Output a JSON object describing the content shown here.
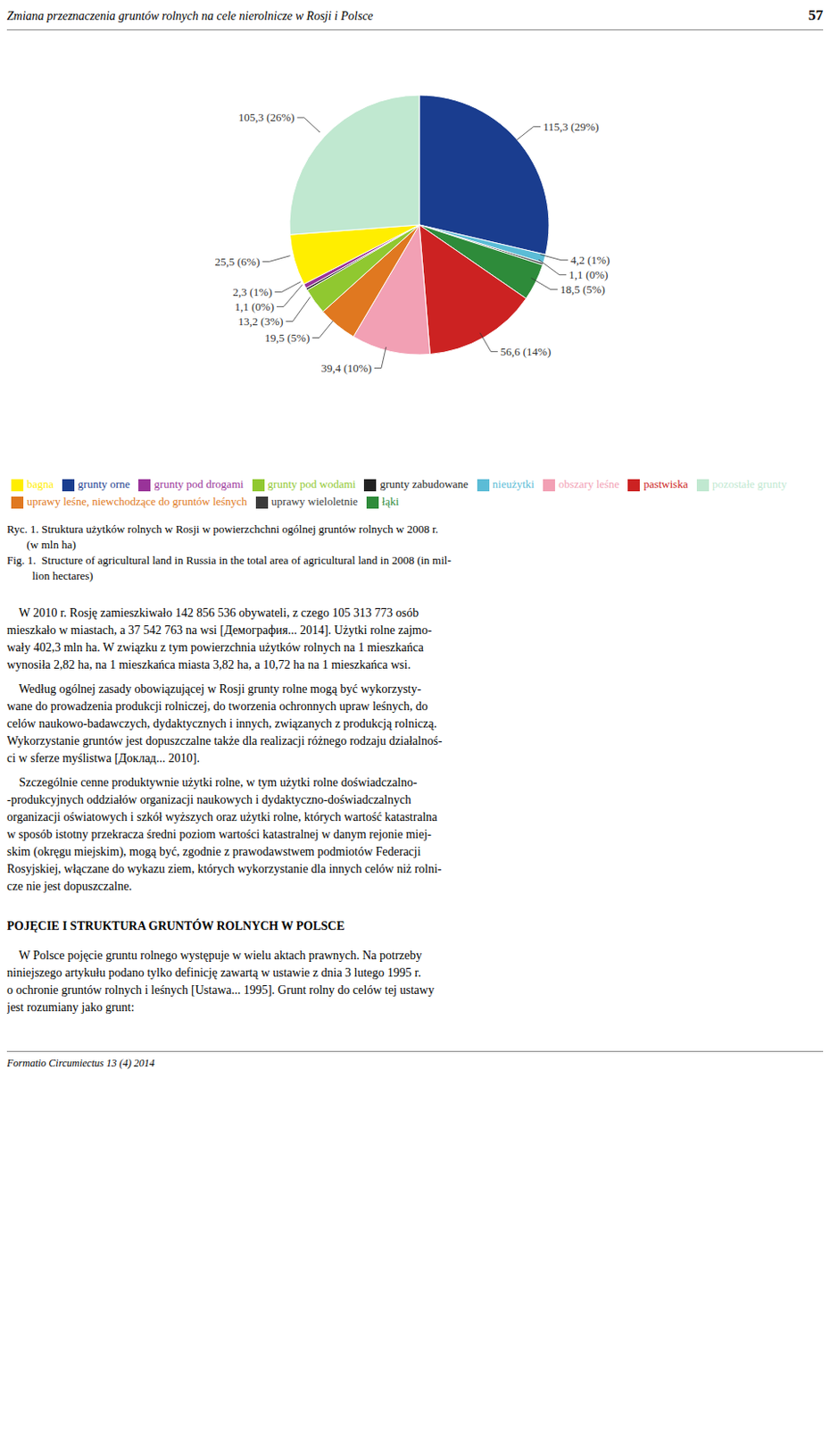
{
  "chart_data": {
    "type": "pie",
    "categories": [
      "grunty orne",
      "nieużytki",
      "uprawy wieloletnie",
      "łąki",
      "pastwiska",
      "obszary leśne",
      "uprawy leśne, niewchodzące do gruntów leśnych",
      "grunty pod wodami",
      "grunty zabudowane",
      "grunty pod drogami",
      "bagna",
      "pozostałe grunty"
    ],
    "values": [
      115.3,
      4.2,
      1.1,
      18.5,
      56.6,
      39.4,
      19.5,
      13.2,
      1.1,
      2.3,
      25.5,
      105.3
    ],
    "value_labels": [
      "115,3 (29%)",
      "4,2 (1%)",
      "1,1 (0%)",
      "18,5 (5%)",
      "56,6 (14%)",
      "39,4 (10%)",
      "19,5 (5%)",
      "13,2 (3%)",
      "1,1 (0%)",
      "2,3 (1%)",
      "25,5 (6%)",
      "105,3 (26%)"
    ],
    "colors": [
      "#1a3d8f",
      "#5bbcd6",
      "#3a3a3a",
      "#2e8b3a",
      "#cc2222",
      "#f2a0b4",
      "#e07820",
      "#90c830",
      "#222222",
      "#993399",
      "#ffee00",
      "#c0e8d0"
    ],
    "data_labels": true,
    "legend": "bottom",
    "annotations": {
      "header": "Zmiana przeznaczenia gruntów rolnych na cele nierolnicze w Rosji i Polsce",
      "page_number": "57",
      "caption": [
        "Ryc. 1. Struktura użytków rolnych w Rosji w powierzchchni ogólnej gruntów rolnych w 2008 r.",
        "       (w mln ha)",
        "Fig. 1.  Structure of agricultural land in Russia in the total area of agricultural land in 2008 (in mil-",
        "         lion hectares)"
      ],
      "body": [
        [
          "    W 2010 r. Rosję zamieszkiwało 142 856 536 obywateli, z czego 105 313 773 osób",
          "mieszkało w miastach, a 37 542 763 na wsi [Демография... 2014]. Użytki rolne zajmo-",
          "wały 402,3 mln ha. W związku z tym powierzchnia użytków rolnych na 1 mieszkańca",
          "wynosiła 2,82 ha, na 1 mieszkańca miasta 3,82 ha, a 10,72 ha na 1 mieszkańca wsi."
        ],
        [
          "    Według ogólnej zasady obowiązującej w Rosji grunty rolne mogą być wykorzysty-",
          "wane do prowadzenia produkcji rolniczej, do tworzenia ochronnych upraw leśnych, do",
          "celów naukowo-badawczych, dydaktycznych i innych, związanych z produkcją rolniczą.",
          "Wykorzystanie gruntów jest dopuszczalne także dla realizacji różnego rodzaju działalnoś-",
          "ci w sferze myślistwa [Доклад... 2010]."
        ],
        [
          "    Szczególnie cenne produktywnie użytki rolne, w tym użytki rolne doświadczalno-",
          "-produkcyjnych oddziałów organizacji naukowych i dydaktyczno-doświadczalnych",
          "organizacji oświatowych i szkół wyższych oraz użytki rolne, których wartość katastralna",
          "w sposób istotny przekracza średni poziom wartości katastralnej w danym rejonie miej-",
          "skim (okręgu miejskim), mogą być, zgodnie z prawodawstwem podmiotów Federacji",
          "Rosyjskiej, włączane do wykazu ziem, których wykorzystanie dla innych celów niż rolni-",
          "cze nie jest dopuszczalne."
        ]
      ],
      "section_title": "POJĘCIE I STRUKTURA GRUNTÓW ROLNYCH W POLSCE",
      "body_after_section": [
        "    W Polsce pojęcie gruntu rolnego występuje w wielu aktach prawnych. Na potrzeby",
        "niniejszego artykułu podano tylko definicję zawartą w ustawie z dnia 3 lutego 1995 r.",
        "o ochronie gruntów rolnych i leśnych [Ustawa... 1995]. Grunt rolny do celów tej ustawy",
        "jest rozumiany jako grunt:"
      ],
      "footer": "Formatio Circumiectus 13 (4) 2014"
    }
  }
}
